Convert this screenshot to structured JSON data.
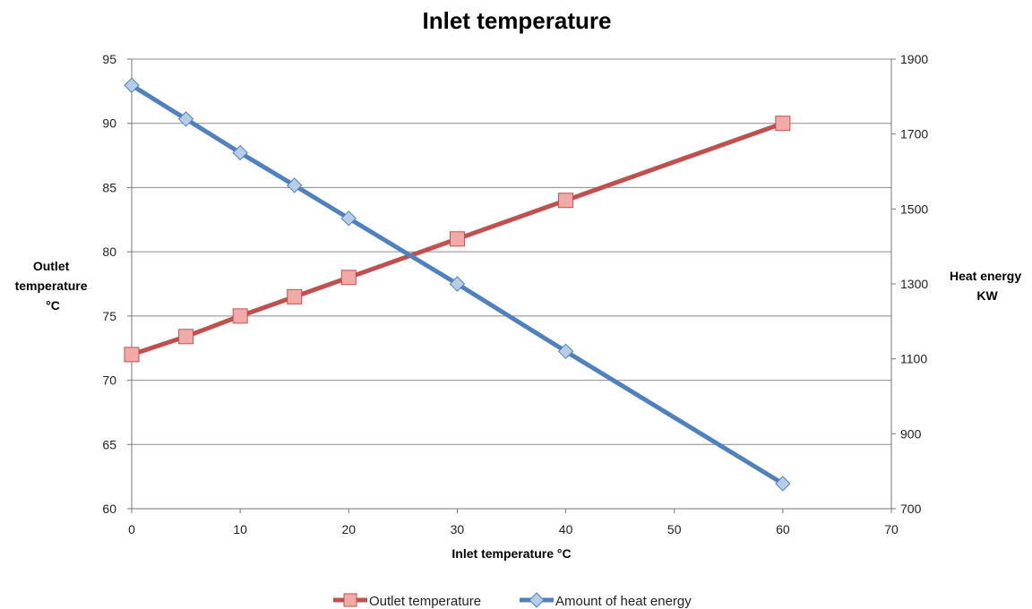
{
  "chart_data": {
    "type": "line",
    "title": "Inlet temperature",
    "xlabel": "Inlet temperature °C",
    "ylabel_left_lines": [
      "Outlet",
      "temperature",
      "°C"
    ],
    "ylabel_right_lines": [
      "Heat energy",
      "KW"
    ],
    "xlim": [
      0,
      70
    ],
    "xticks": [
      0,
      10,
      20,
      30,
      40,
      50,
      60,
      70
    ],
    "ylim_left": [
      60,
      95
    ],
    "yticks_left": [
      60,
      65,
      70,
      75,
      80,
      85,
      90,
      95
    ],
    "ylim_right": [
      700,
      1900
    ],
    "yticks_right": [
      700,
      900,
      1100,
      1300,
      1500,
      1700,
      1900
    ],
    "grid": true,
    "legend_position": "bottom",
    "series": [
      {
        "name": "Outlet temperature",
        "axis": "left",
        "color": "#c0504d",
        "marker": "square",
        "x": [
          0,
          5,
          10,
          15,
          20,
          30,
          40,
          60
        ],
        "values": [
          72,
          73.4,
          75,
          76.5,
          78,
          81,
          84,
          90
        ]
      },
      {
        "name": "Amount of heat energy",
        "axis": "right",
        "color": "#4f81bd",
        "marker": "diamond",
        "x": [
          0,
          5,
          10,
          15,
          20,
          30,
          40,
          60
        ],
        "values": [
          1830,
          1740,
          1650,
          1563,
          1475,
          1300,
          1120,
          767
        ]
      }
    ]
  }
}
